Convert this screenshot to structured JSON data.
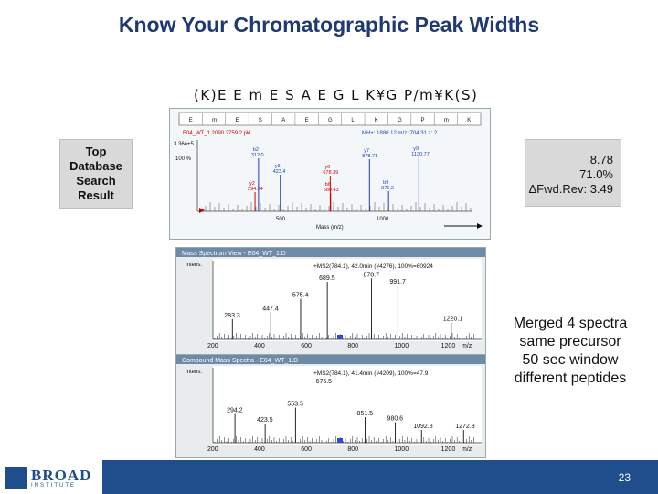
{
  "slide": {
    "title": "Know Your Chromatographic Peak Widths",
    "page_number": "23"
  },
  "sequence": "(K)E E m E S A E G L K¥G P/m¥K(S)",
  "left_box": {
    "lines": [
      "Top",
      "Database",
      "Search",
      "Result"
    ]
  },
  "right_box": {
    "lines": [
      "8.78",
      "71.0%",
      "ΔFwd.Rev: 3.49"
    ]
  },
  "merged_note": {
    "lines": [
      "Merged 4 spectra",
      "same precursor",
      "50 sec window",
      "different peptides"
    ]
  },
  "top_spectrum": {
    "header_residues": [
      "E",
      "m",
      "E",
      "S",
      "A",
      "E",
      "G",
      "L",
      "K",
      "G",
      "P",
      "m",
      "K"
    ],
    "filename": "E04_WT_1.2090.2759.2.pkl",
    "file_info": "MH+: 1880.12  m/z: 704.31  z: 2",
    "yaxis_top": "3.36e+5",
    "yaxis_pct": "100 %",
    "x_axis_label": "Mass (m/z)",
    "x_ticks": [
      "500",
      "1000"
    ],
    "peak_labels": [
      {
        "name": "b6",
        "text": "680.43"
      },
      {
        "name": "y7",
        "text": "878.71"
      },
      {
        "name": "y6",
        "text": "678.39"
      },
      {
        "name": "y2",
        "text": "294.24"
      },
      {
        "name": "b2",
        "text": "312.0"
      },
      {
        "name": "y3",
        "text": "423.4"
      },
      {
        "name": "b9",
        "text": "976.2"
      },
      {
        "name": "y9",
        "text": "1130.77"
      }
    ]
  },
  "mid_spectrum": {
    "window_title": "Mass Spectrum View - E04_WT_1.D",
    "header": "+MS2(784.1), 42.0min (#4276), 100%=60924",
    "y_label": "Intens.",
    "y_value": "x10^4",
    "x_ticks": [
      "200",
      "400",
      "600",
      "800",
      "1000",
      "1200",
      "m/z"
    ],
    "peaks": [
      "689.5",
      "878.7",
      "991.7",
      "575.4",
      "447.4",
      "283.3",
      "1220.1"
    ]
  },
  "bottom_spectrum": {
    "window_title": "Compound Mass Spectra - E04_WT_1.D",
    "header": "+MS2(784.1), 41.4min (#4209), 100%=47.9",
    "y_label": "Intens.",
    "x_ticks": [
      "200",
      "400",
      "600",
      "800",
      "1000",
      "1200",
      "m/z"
    ],
    "peaks": [
      "675.5",
      "294.2",
      "553.5",
      "423.5",
      "851.5",
      "980.6",
      "1092.8",
      "1272.8"
    ]
  },
  "logo": {
    "word": "BROAD",
    "sub": "INSTITUTE"
  }
}
